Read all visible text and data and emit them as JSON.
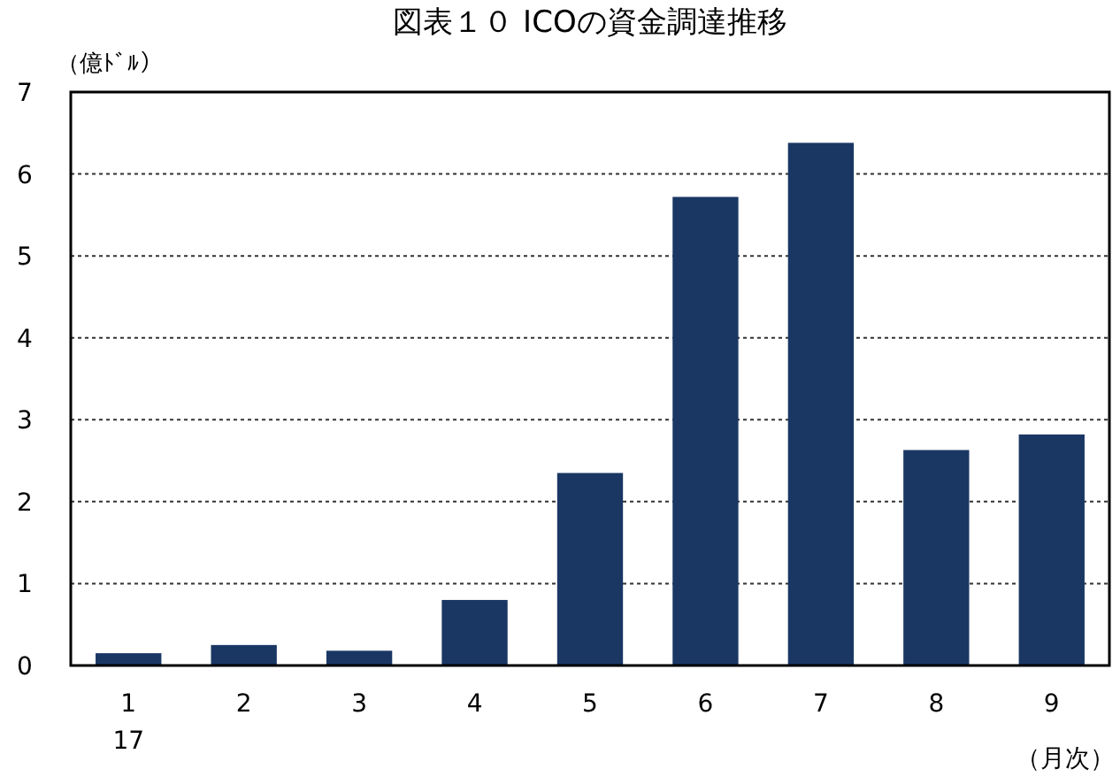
{
  "chart_data": {
    "type": "bar",
    "title": "図表１０ ICOの資金調達推移",
    "ylabel": "（億ﾄﾞﾙ）",
    "xlabel": "（月次）",
    "categories": [
      "1\n17",
      "2",
      "3",
      "4",
      "5",
      "6",
      "7",
      "8",
      "9"
    ],
    "values": [
      0.15,
      0.25,
      0.18,
      0.8,
      2.35,
      5.72,
      6.38,
      2.63,
      2.82
    ],
    "color": "#1a3764",
    "ylim": [
      0,
      7
    ],
    "yticks": [
      0,
      1,
      2,
      3,
      4,
      5,
      6,
      7
    ],
    "grid": "y"
  }
}
